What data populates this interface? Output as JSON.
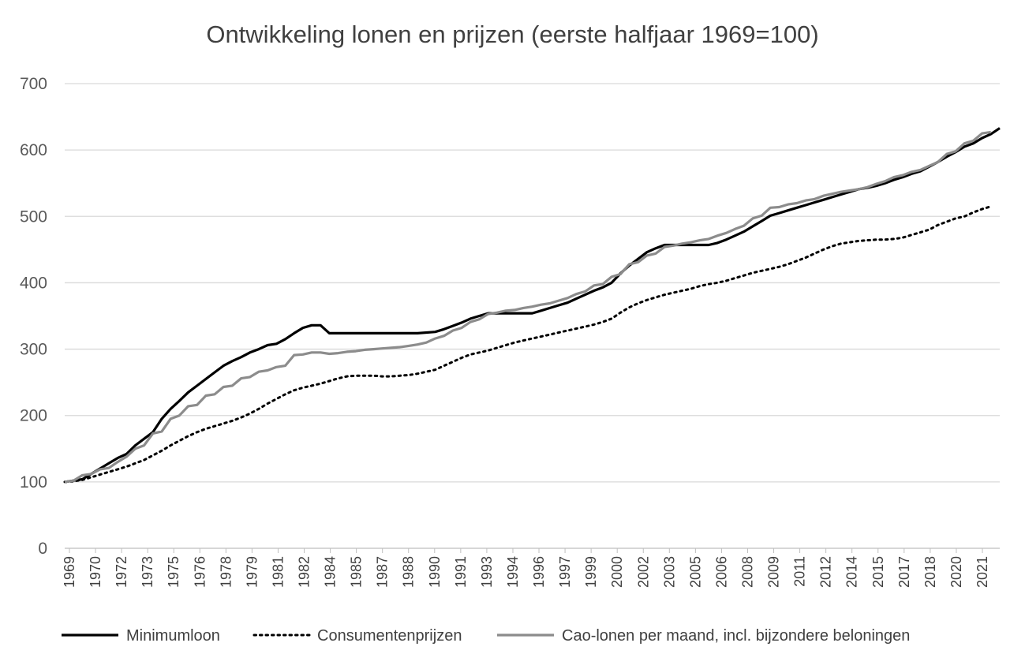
{
  "chart_data": {
    "type": "line",
    "title": "Ontwikkeling lonen en prijzen (eerste halfjaar 1969=100)",
    "xlabel": "",
    "ylabel": "",
    "ylim": [
      0,
      700
    ],
    "yticks": [
      0,
      100,
      200,
      300,
      400,
      500,
      600,
      700
    ],
    "xlim": [
      1969.0,
      2022.0
    ],
    "xtick_labels": [
      "1969",
      "1970",
      "1972",
      "1973",
      "1975",
      "1976",
      "1978",
      "1979",
      "1981",
      "1982",
      "1984",
      "1985",
      "1987",
      "1988",
      "1990",
      "1991",
      "1993",
      "1994",
      "1996",
      "1997",
      "1999",
      "2000",
      "2002",
      "2003",
      "2005",
      "2006",
      "2008",
      "2009",
      "2011",
      "2012",
      "2014",
      "2015",
      "2017",
      "2018",
      "2020",
      "2021"
    ],
    "grid": "horizontal",
    "legend_position": "bottom",
    "series": [
      {
        "name": "Minimumloon",
        "color": "#000000",
        "style": "solid",
        "x": [
          1969.0,
          1969.5,
          1970.0,
          1970.5,
          1971.0,
          1971.5,
          1972.0,
          1972.5,
          1973.0,
          1973.5,
          1974.0,
          1974.5,
          1975.0,
          1975.5,
          1976.0,
          1976.5,
          1977.0,
          1977.5,
          1978.0,
          1978.5,
          1979.0,
          1979.5,
          1980.0,
          1980.5,
          1981.0,
          1981.5,
          1982.0,
          1982.5,
          1983.0,
          1983.5,
          1984.0,
          1985.0,
          1986.0,
          1987.0,
          1988.0,
          1989.0,
          1990.0,
          1990.5,
          1991.0,
          1991.5,
          1992.0,
          1992.5,
          1993.0,
          1994.0,
          1995.0,
          1995.5,
          1996.0,
          1996.5,
          1997.0,
          1997.5,
          1998.0,
          1998.5,
          1999.0,
          1999.5,
          2000.0,
          2000.5,
          2001.0,
          2001.5,
          2002.0,
          2002.5,
          2003.0,
          2004.0,
          2005.0,
          2005.5,
          2006.0,
          2006.5,
          2007.0,
          2007.5,
          2008.0,
          2008.5,
          2009.0,
          2009.5,
          2010.0,
          2010.5,
          2011.0,
          2011.5,
          2012.0,
          2012.5,
          2013.0,
          2013.5,
          2014.0,
          2014.5,
          2015.0,
          2015.5,
          2016.0,
          2016.5,
          2017.0,
          2017.5,
          2018.0,
          2018.5,
          2019.0,
          2019.5,
          2020.0,
          2020.5,
          2021.0,
          2021.5,
          2022.0
        ],
        "values": [
          100,
          102,
          104,
          112,
          120,
          128,
          136,
          142,
          155,
          165,
          175,
          195,
          210,
          222,
          235,
          245,
          255,
          265,
          275,
          282,
          288,
          295,
          300,
          306,
          308,
          315,
          324,
          332,
          336,
          336,
          324,
          324,
          324,
          324,
          324,
          324,
          326,
          330,
          335,
          340,
          346,
          350,
          354,
          354,
          354,
          354,
          358,
          362,
          366,
          370,
          376,
          382,
          388,
          393,
          400,
          414,
          426,
          436,
          446,
          452,
          457,
          457,
          457,
          457,
          460,
          465,
          471,
          477,
          485,
          493,
          501,
          505,
          509,
          513,
          517,
          521,
          525,
          529,
          533,
          537,
          541,
          543,
          546,
          550,
          555,
          559,
          564,
          568,
          575,
          582,
          590,
          597,
          605,
          610,
          618,
          624,
          633
        ]
      },
      {
        "name": "Consumentenprijzen",
        "color": "#000000",
        "style": "dotted",
        "x": [
          1969.0,
          1969.5,
          1970.0,
          1970.5,
          1971.0,
          1971.5,
          1972.0,
          1972.5,
          1973.0,
          1973.5,
          1974.0,
          1974.5,
          1975.0,
          1975.5,
          1976.0,
          1976.5,
          1977.0,
          1977.5,
          1978.0,
          1978.5,
          1979.0,
          1979.5,
          1980.0,
          1980.5,
          1981.0,
          1981.5,
          1982.0,
          1982.5,
          1983.0,
          1983.5,
          1984.0,
          1984.5,
          1985.0,
          1985.5,
          1986.0,
          1986.5,
          1987.0,
          1987.5,
          1988.0,
          1988.5,
          1989.0,
          1989.5,
          1990.0,
          1990.5,
          1991.0,
          1991.5,
          1992.0,
          1992.5,
          1993.0,
          1993.5,
          1994.0,
          1994.5,
          1995.0,
          1995.5,
          1996.0,
          1996.5,
          1997.0,
          1997.5,
          1998.0,
          1998.5,
          1999.0,
          1999.5,
          2000.0,
          2000.5,
          2001.0,
          2001.5,
          2002.0,
          2002.5,
          2003.0,
          2003.5,
          2004.0,
          2004.5,
          2005.0,
          2005.5,
          2006.0,
          2006.5,
          2007.0,
          2007.5,
          2008.0,
          2008.5,
          2009.0,
          2009.5,
          2010.0,
          2010.5,
          2011.0,
          2011.5,
          2012.0,
          2012.5,
          2013.0,
          2013.5,
          2014.0,
          2014.5,
          2015.0,
          2015.5,
          2016.0,
          2016.5,
          2017.0,
          2017.5,
          2018.0,
          2018.5,
          2019.0,
          2019.5,
          2020.0,
          2020.5,
          2021.0,
          2021.5
        ],
        "values": [
          100,
          101,
          103,
          107,
          111,
          115,
          119,
          123,
          128,
          133,
          140,
          147,
          155,
          162,
          169,
          175,
          180,
          184,
          188,
          192,
          197,
          203,
          210,
          218,
          225,
          232,
          238,
          242,
          245,
          248,
          252,
          256,
          259,
          260,
          260,
          260,
          259,
          259,
          260,
          261,
          263,
          266,
          269,
          275,
          281,
          287,
          292,
          295,
          298,
          302,
          306,
          310,
          313,
          316,
          319,
          322,
          325,
          328,
          331,
          334,
          337,
          341,
          346,
          355,
          363,
          369,
          374,
          378,
          382,
          385,
          388,
          391,
          395,
          398,
          400,
          403,
          407,
          411,
          415,
          418,
          421,
          424,
          428,
          433,
          438,
          444,
          450,
          455,
          459,
          461,
          463,
          464,
          465,
          465,
          466,
          468,
          472,
          476,
          480,
          487,
          492,
          497,
          500,
          506,
          511,
          515
        ]
      },
      {
        "name": "Cao-lonen per maand, incl. bijzondere beloningen",
        "color": "#8c8c8c",
        "style": "solid",
        "x": [
          1969.0,
          1969.5,
          1970.0,
          1970.5,
          1971.0,
          1971.5,
          1972.0,
          1972.5,
          1973.0,
          1973.5,
          1974.0,
          1974.5,
          1975.0,
          1975.5,
          1976.0,
          1976.5,
          1977.0,
          1977.5,
          1978.0,
          1978.5,
          1979.0,
          1979.5,
          1980.0,
          1980.5,
          1981.0,
          1981.5,
          1982.0,
          1982.5,
          1983.0,
          1983.5,
          1984.0,
          1984.5,
          1985.0,
          1985.5,
          1986.0,
          1986.5,
          1987.0,
          1987.5,
          1988.0,
          1988.5,
          1989.0,
          1989.5,
          1990.0,
          1990.5,
          1991.0,
          1991.5,
          1992.0,
          1992.5,
          1993.0,
          1993.5,
          1994.0,
          1994.5,
          1995.0,
          1995.5,
          1996.0,
          1996.5,
          1997.0,
          1997.5,
          1998.0,
          1998.5,
          1999.0,
          1999.5,
          2000.0,
          2000.5,
          2001.0,
          2001.5,
          2002.0,
          2002.5,
          2003.0,
          2003.5,
          2004.0,
          2004.5,
          2005.0,
          2005.5,
          2006.0,
          2006.5,
          2007.0,
          2007.5,
          2008.0,
          2008.5,
          2009.0,
          2009.5,
          2010.0,
          2010.5,
          2011.0,
          2011.5,
          2012.0,
          2012.5,
          2013.0,
          2013.5,
          2014.0,
          2014.5,
          2015.0,
          2015.5,
          2016.0,
          2016.5,
          2017.0,
          2017.5,
          2018.0,
          2018.5,
          2019.0,
          2019.5,
          2020.0,
          2020.5,
          2021.0,
          2021.5
        ],
        "values": [
          100,
          102,
          110,
          112,
          119,
          121,
          130,
          138,
          150,
          155,
          173,
          176,
          195,
          200,
          214,
          216,
          230,
          232,
          243,
          245,
          256,
          258,
          266,
          268,
          273,
          275,
          291,
          292,
          295,
          295,
          293,
          294,
          296,
          297,
          299,
          300,
          301,
          302,
          303,
          305,
          307,
          310,
          316,
          320,
          328,
          332,
          341,
          345,
          353,
          355,
          358,
          359,
          362,
          364,
          367,
          369,
          373,
          377,
          383,
          387,
          396,
          398,
          409,
          413,
          428,
          431,
          441,
          444,
          454,
          456,
          459,
          461,
          464,
          466,
          471,
          475,
          481,
          486,
          497,
          501,
          513,
          514,
          518,
          520,
          524,
          526,
          531,
          534,
          537,
          539,
          541,
          544,
          549,
          553,
          559,
          562,
          567,
          570,
          576,
          582,
          594,
          598,
          610,
          614,
          625,
          627
        ]
      }
    ]
  }
}
